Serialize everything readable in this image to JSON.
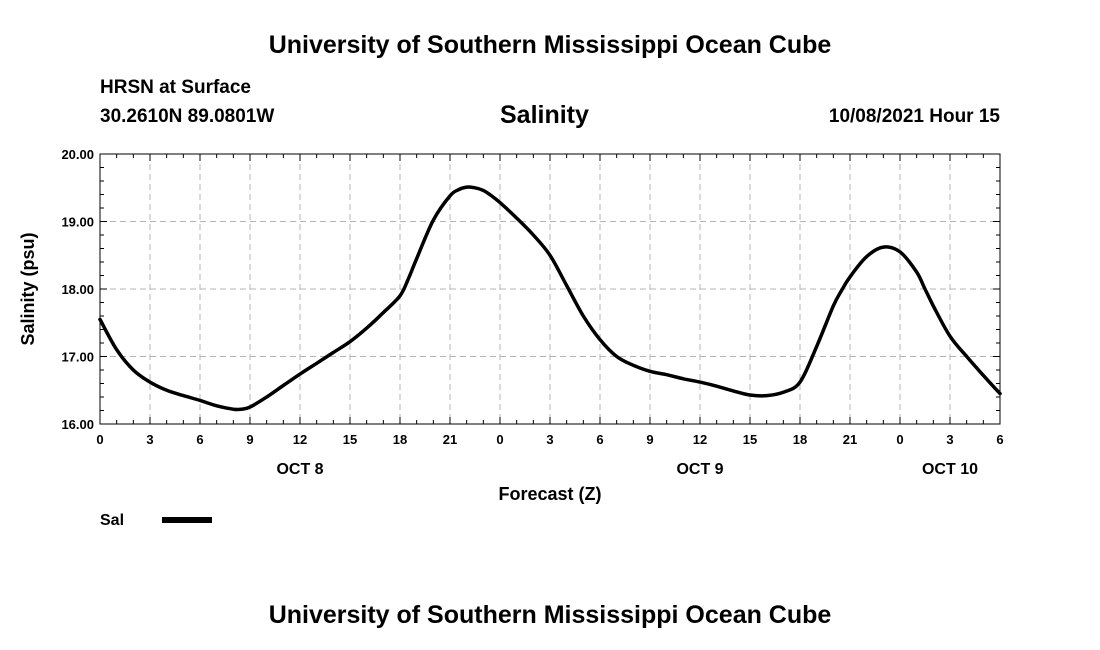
{
  "header": {
    "title": "University of Southern Mississippi Ocean Cube",
    "station": "HRSN at Surface",
    "coords": "30.2610N  89.0801W",
    "variable": "Salinity",
    "datetime": "10/08/2021 Hour 15"
  },
  "footer": {
    "title": "University of Southern Mississippi Ocean Cube"
  },
  "colors": {
    "line": "#000000",
    "grid": "#b4b4b4",
    "background": "#ffffff"
  },
  "chart_data": {
    "type": "line",
    "title": "Salinity",
    "xlabel": "Forecast (Z)",
    "ylabel": "Salinity (psu)",
    "xlim": [
      0,
      54
    ],
    "ylim": [
      16.0,
      20.0
    ],
    "grid": true,
    "x_ticks": [
      0,
      3,
      6,
      9,
      12,
      15,
      18,
      21,
      24,
      27,
      30,
      33,
      36,
      39,
      42,
      45,
      48,
      51,
      54
    ],
    "x_tick_labels": [
      "0",
      "3",
      "6",
      "9",
      "12",
      "15",
      "18",
      "21",
      "0",
      "3",
      "6",
      "9",
      "12",
      "15",
      "18",
      "21",
      "0",
      "3",
      "6"
    ],
    "y_ticks": [
      16.0,
      17.0,
      18.0,
      19.0,
      20.0
    ],
    "y_tick_labels": [
      "16.00",
      "17.00",
      "18.00",
      "19.00",
      "20.00"
    ],
    "date_labels": [
      {
        "x": 12,
        "label": "OCT 8"
      },
      {
        "x": 36,
        "label": "OCT 9"
      },
      {
        "x": 51,
        "label": "OCT 10"
      }
    ],
    "legend": [
      {
        "name": "Sal",
        "placement": "bottom-left"
      }
    ],
    "series": [
      {
        "name": "Sal",
        "x": [
          0,
          1,
          2,
          3,
          4,
          5,
          6,
          7,
          8,
          8.5,
          9,
          10,
          11,
          12,
          13,
          14,
          15,
          16,
          17,
          18,
          18.5,
          19,
          20,
          21,
          21.5,
          22,
          22.5,
          23,
          23.5,
          24,
          25,
          26,
          27,
          28,
          29,
          30,
          31,
          32,
          33,
          34,
          35,
          36,
          37,
          38,
          39,
          40,
          41,
          42,
          43,
          44,
          44.5,
          45,
          46,
          47,
          48,
          49,
          49.5,
          50,
          51,
          52,
          53,
          54
        ],
        "y": [
          17.55,
          17.1,
          16.8,
          16.62,
          16.5,
          16.42,
          16.35,
          16.27,
          16.22,
          16.22,
          16.25,
          16.4,
          16.57,
          16.74,
          16.9,
          17.06,
          17.22,
          17.42,
          17.65,
          17.9,
          18.15,
          18.45,
          19.02,
          19.38,
          19.47,
          19.51,
          19.5,
          19.46,
          19.38,
          19.28,
          19.05,
          18.8,
          18.5,
          18.05,
          17.6,
          17.25,
          17.0,
          16.87,
          16.78,
          16.73,
          16.67,
          16.62,
          16.56,
          16.49,
          16.43,
          16.42,
          16.47,
          16.62,
          17.15,
          17.75,
          17.98,
          18.18,
          18.48,
          18.62,
          18.55,
          18.25,
          18.0,
          17.75,
          17.3,
          17.0,
          16.72,
          16.45
        ]
      }
    ]
  }
}
